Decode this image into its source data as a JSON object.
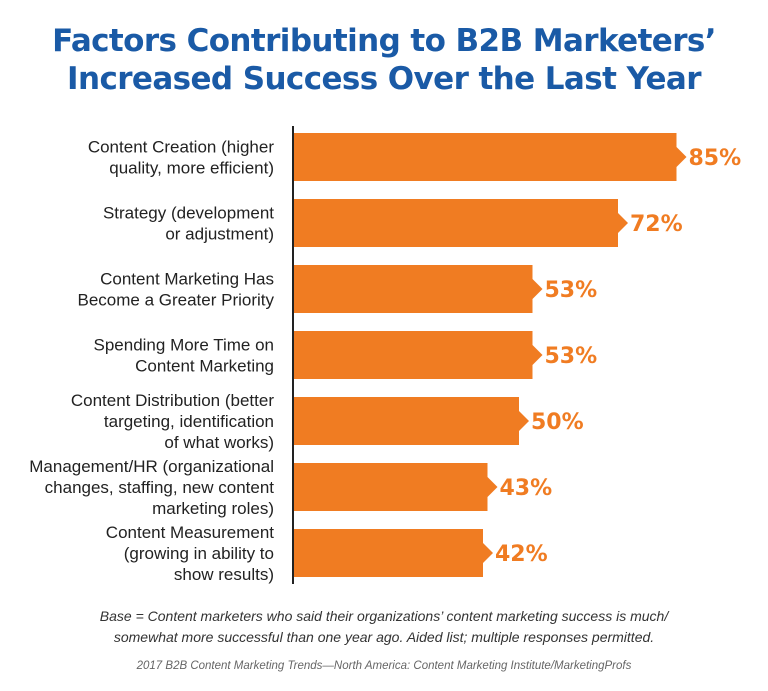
{
  "colors": {
    "title": "#1a5aa6",
    "bar": "#f07c22",
    "value_label": "#f07c22",
    "axis": "#222222"
  },
  "chart_data": {
    "type": "bar",
    "orientation": "horizontal",
    "title": "Factors Contributing to B2B Marketers’ Increased Success Over the Last Year",
    "title_lines": [
      "Factors Contributing to B2B Marketers’",
      "Increased Success Over the Last Year"
    ],
    "categories": [
      "Content Creation (higher quality, more efficient)",
      "Strategy (development or adjustment)",
      "Content Marketing Has Become a Greater Priority",
      "Spending More Time on Content Marketing",
      "Content Distribution (better targeting, identification of what works)",
      "Management/HR (organizational changes, staffing, new content marketing roles)",
      "Content Measurement (growing in ability to show results)"
    ],
    "category_lines": [
      [
        "Content Creation (higher",
        "quality, more efficient)"
      ],
      [
        "Strategy (development",
        "or adjustment)"
      ],
      [
        "Content Marketing Has",
        "Become a Greater Priority"
      ],
      [
        "Spending More Time on",
        "Content Marketing"
      ],
      [
        "Content Distribution (better",
        "targeting, identification",
        "of what works)"
      ],
      [
        "Management/HR (organizational",
        "changes, staffing, new content",
        "marketing roles)"
      ],
      [
        "Content Measurement",
        "(growing in ability to",
        "show results)"
      ]
    ],
    "values": [
      85,
      72,
      53,
      53,
      50,
      43,
      42
    ],
    "value_labels": [
      "85%",
      "72%",
      "53%",
      "53%",
      "50%",
      "43%",
      "42%"
    ],
    "unit": "%",
    "xlim": [
      0,
      100
    ],
    "grid": false,
    "legend": "none"
  },
  "footnote": {
    "lines": [
      "Base = Content marketers who said their organizations’ content marketing success is much/",
      "somewhat more successful than one year ago. Aided list; multiple responses permitted."
    ]
  },
  "source": "2017 B2B Content Marketing Trends—North America: Content Marketing Institute/MarketingProfs"
}
